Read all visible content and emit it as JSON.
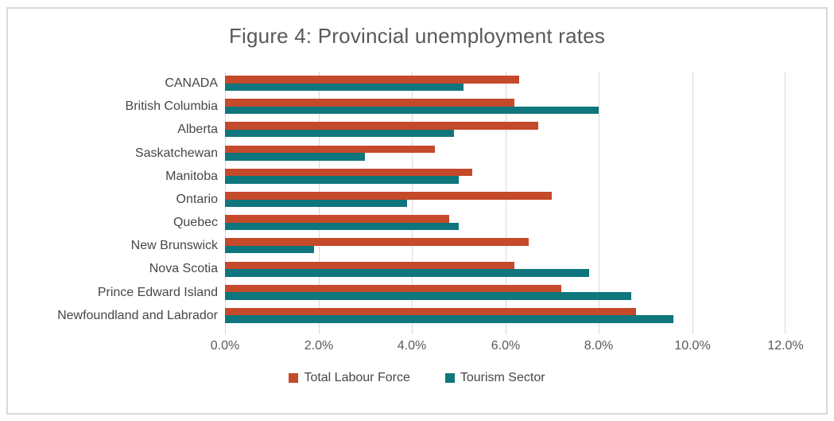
{
  "figure": {
    "title": "Figure 4: Provincial unemployment rates"
  },
  "chart_data": {
    "type": "bar",
    "orientation": "horizontal",
    "title": "Figure 4: Provincial unemployment rates",
    "categories": [
      "CANADA",
      "British Columbia",
      "Alberta",
      "Saskatchewan",
      "Manitoba",
      "Ontario",
      "Quebec",
      "New Brunswick",
      "Nova Scotia",
      "Prince Edward Island",
      "Newfoundland and Labrador"
    ],
    "series": [
      {
        "name": "Total Labour Force",
        "color": "#C5492B",
        "values": [
          6.3,
          6.2,
          6.7,
          4.5,
          5.3,
          7.0,
          4.8,
          6.5,
          6.2,
          7.2,
          8.8
        ]
      },
      {
        "name": "Tourism Sector",
        "color": "#0E767C",
        "values": [
          5.1,
          8.0,
          4.9,
          3.0,
          5.0,
          3.9,
          5.0,
          1.9,
          7.8,
          8.7,
          9.6
        ]
      }
    ],
    "x_axis": {
      "min": 0,
      "max": 12,
      "step": 2,
      "tick_labels": [
        "0.0%",
        "2.0%",
        "4.0%",
        "6.0%",
        "8.0%",
        "10.0%",
        "12.0%"
      ],
      "unit": "%"
    },
    "grid": true,
    "legend_position": "bottom",
    "colors": {
      "gridline": "#D9D9D9",
      "frame_border": "#D9D9D9",
      "title_text": "#595959",
      "category_text": "#474747",
      "axis_text": "#595959",
      "background": "#FFFFFF"
    }
  }
}
